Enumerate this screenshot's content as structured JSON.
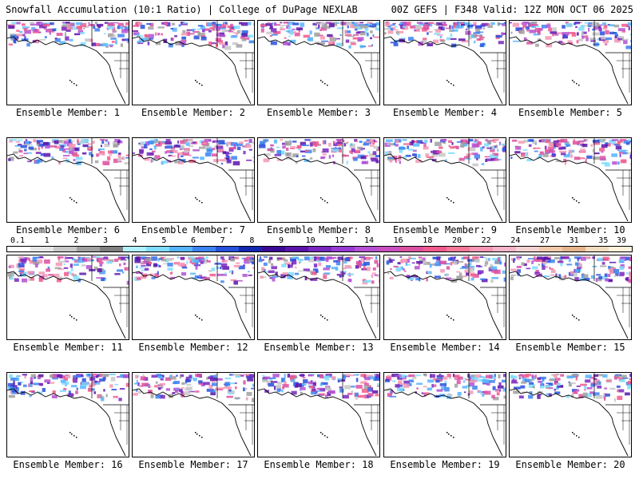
{
  "header": {
    "title": "Snowfall Accumulation (10:1 Ratio) | College of DuPage NEXLAB",
    "run_info": "00Z GEFS | F348 Valid: 12Z MON OCT 06 2025"
  },
  "panels": [
    {
      "member": 1,
      "label": "Ensemble Member: 1"
    },
    {
      "member": 2,
      "label": "Ensemble Member: 2"
    },
    {
      "member": 3,
      "label": "Ensemble Member: 3"
    },
    {
      "member": 4,
      "label": "Ensemble Member: 4"
    },
    {
      "member": 5,
      "label": "Ensemble Member: 5"
    },
    {
      "member": 6,
      "label": "Ensemble Member: 6"
    },
    {
      "member": 7,
      "label": "Ensemble Member: 7"
    },
    {
      "member": 8,
      "label": "Ensemble Member: 8"
    },
    {
      "member": 9,
      "label": "Ensemble Member: 9"
    },
    {
      "member": 10,
      "label": "Ensemble Member: 10"
    },
    {
      "member": 11,
      "label": "Ensemble Member: 11"
    },
    {
      "member": 12,
      "label": "Ensemble Member: 12"
    },
    {
      "member": 13,
      "label": "Ensemble Member: 13"
    },
    {
      "member": 14,
      "label": "Ensemble Member: 14"
    },
    {
      "member": 15,
      "label": "Ensemble Member: 15"
    },
    {
      "member": 16,
      "label": "Ensemble Member: 16"
    },
    {
      "member": 17,
      "label": "Ensemble Member: 17"
    },
    {
      "member": 18,
      "label": "Ensemble Member: 18"
    },
    {
      "member": 19,
      "label": "Ensemble Member: 19"
    },
    {
      "member": 20,
      "label": "Ensemble Member: 20"
    }
  ],
  "legend": {
    "labels": [
      "0.1",
      "1",
      "2",
      "3",
      "4",
      "5",
      "6",
      "7",
      "8",
      "9",
      "10",
      "12",
      "14",
      "16",
      "18",
      "20",
      "22",
      "24",
      "27",
      "31",
      "35",
      "39"
    ],
    "colors": [
      "#ffffff",
      "#e6e6e6",
      "#c8c8c8",
      "#a0a0a0",
      "#7f7f7f",
      "#b0f0ff",
      "#7fdcff",
      "#56b4ff",
      "#3c82f0",
      "#2850dc",
      "#1428b4",
      "#3c0a96",
      "#5a14aa",
      "#7828be",
      "#963cd2",
      "#b450d2",
      "#c850be",
      "#dc50a0",
      "#f05a8c",
      "#f57896",
      "#f596b4",
      "#f5b4c8",
      "#f5d2d2",
      "#f0c8aa",
      "#e6b48c",
      "#f0dcbe",
      "#fff0dc"
    ]
  }
}
